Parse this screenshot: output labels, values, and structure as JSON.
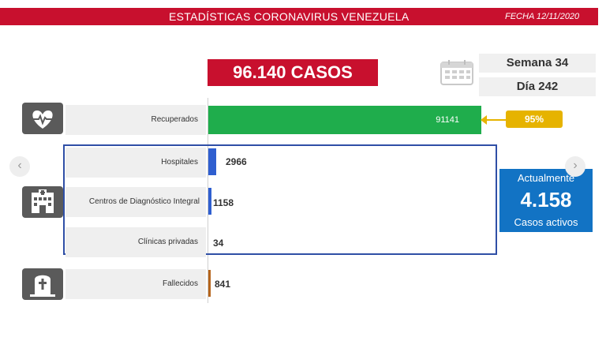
{
  "header": {
    "title": "ESTADÍSTICAS CORONAVIRUS VENEZUELA",
    "date": "FECHA 12/11/2020"
  },
  "total_cases": "96.140 CASOS",
  "calendar": {
    "week": "Semana 34",
    "day": "Día 242"
  },
  "rows": {
    "recuperados": {
      "label": "Recuperados",
      "value": "91141",
      "percent": "95%"
    },
    "hospitales": {
      "label": "Hospitales",
      "value": "2966"
    },
    "cdi": {
      "label": "Centros de Diagnóstico Integral",
      "value": "1158"
    },
    "clinicas": {
      "label": "Clínicas privadas",
      "value": "34"
    },
    "fallecidos": {
      "label": "Fallecidos",
      "value": "841"
    }
  },
  "active": {
    "label": "Actualmente",
    "number": "4.158",
    "sublabel": "Casos activos"
  },
  "nav": {
    "prev": "‹",
    "next": "›"
  },
  "colors": {
    "header_red": "#c8102e",
    "recovered_green": "#1fad4c",
    "percent_gold": "#e6b300",
    "hospital_blue": "#2f5fd0",
    "active_blue": "#1273c4",
    "deaths_orange": "#b5651d"
  },
  "icons": {
    "recovered": "heart-pulse-icon",
    "hospital": "hospital-icon",
    "deaths": "tombstone-cross-icon",
    "calendar": "calendar-icon"
  }
}
